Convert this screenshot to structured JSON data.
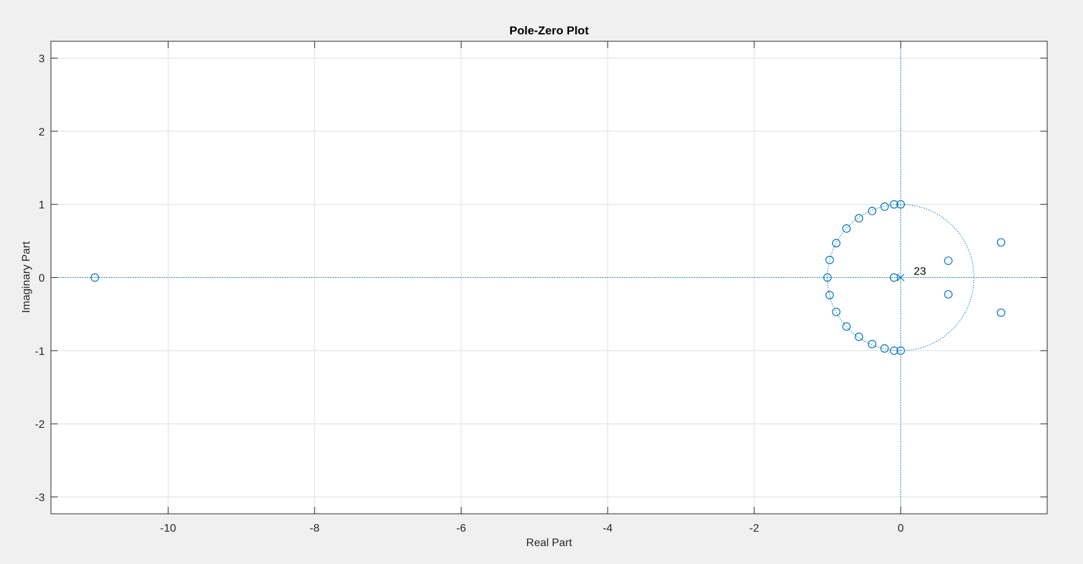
{
  "chart_data": {
    "type": "scatter",
    "title": "Pole-Zero Plot",
    "xlabel": "Real Part",
    "ylabel": "Imaginary Part",
    "xlim": [
      -11.6,
      2.0
    ],
    "ylim": [
      -3.23,
      3.23
    ],
    "xticks": [
      -10,
      -8,
      -6,
      -4,
      -2,
      0
    ],
    "yticks": [
      -3,
      -2,
      -1,
      0,
      1,
      2,
      3
    ],
    "grid": true,
    "unit_circle": true,
    "colors": {
      "series": "#0072BD",
      "grid": "#DFDFDF",
      "axes": "#262626",
      "background": "#F0F0F0",
      "plot_bg": "#FFFFFF"
    },
    "series": [
      {
        "name": "zeros",
        "marker": "o",
        "points": [
          [
            -11.0,
            0.0
          ],
          [
            -1.0,
            0.0
          ],
          [
            -0.97,
            0.24
          ],
          [
            -0.97,
            -0.24
          ],
          [
            -0.88,
            0.47
          ],
          [
            -0.88,
            -0.47
          ],
          [
            -0.74,
            0.67
          ],
          [
            -0.74,
            -0.67
          ],
          [
            -0.57,
            0.81
          ],
          [
            -0.57,
            -0.81
          ],
          [
            -0.39,
            0.91
          ],
          [
            -0.39,
            -0.91
          ],
          [
            -0.22,
            0.97
          ],
          [
            -0.22,
            -0.97
          ],
          [
            -0.09,
            1.0
          ],
          [
            -0.09,
            -1.0
          ],
          [
            0.0,
            1.0
          ],
          [
            0.0,
            -1.0
          ],
          [
            -0.09,
            0.0
          ],
          [
            0.65,
            0.23
          ],
          [
            0.65,
            -0.23
          ],
          [
            1.37,
            0.48
          ],
          [
            1.37,
            -0.48
          ]
        ]
      },
      {
        "name": "poles",
        "marker": "x",
        "points": [
          [
            0.0,
            0.0
          ]
        ]
      }
    ],
    "annotations": [
      {
        "text": "23",
        "x": 0.0,
        "y": 0.0
      }
    ]
  }
}
